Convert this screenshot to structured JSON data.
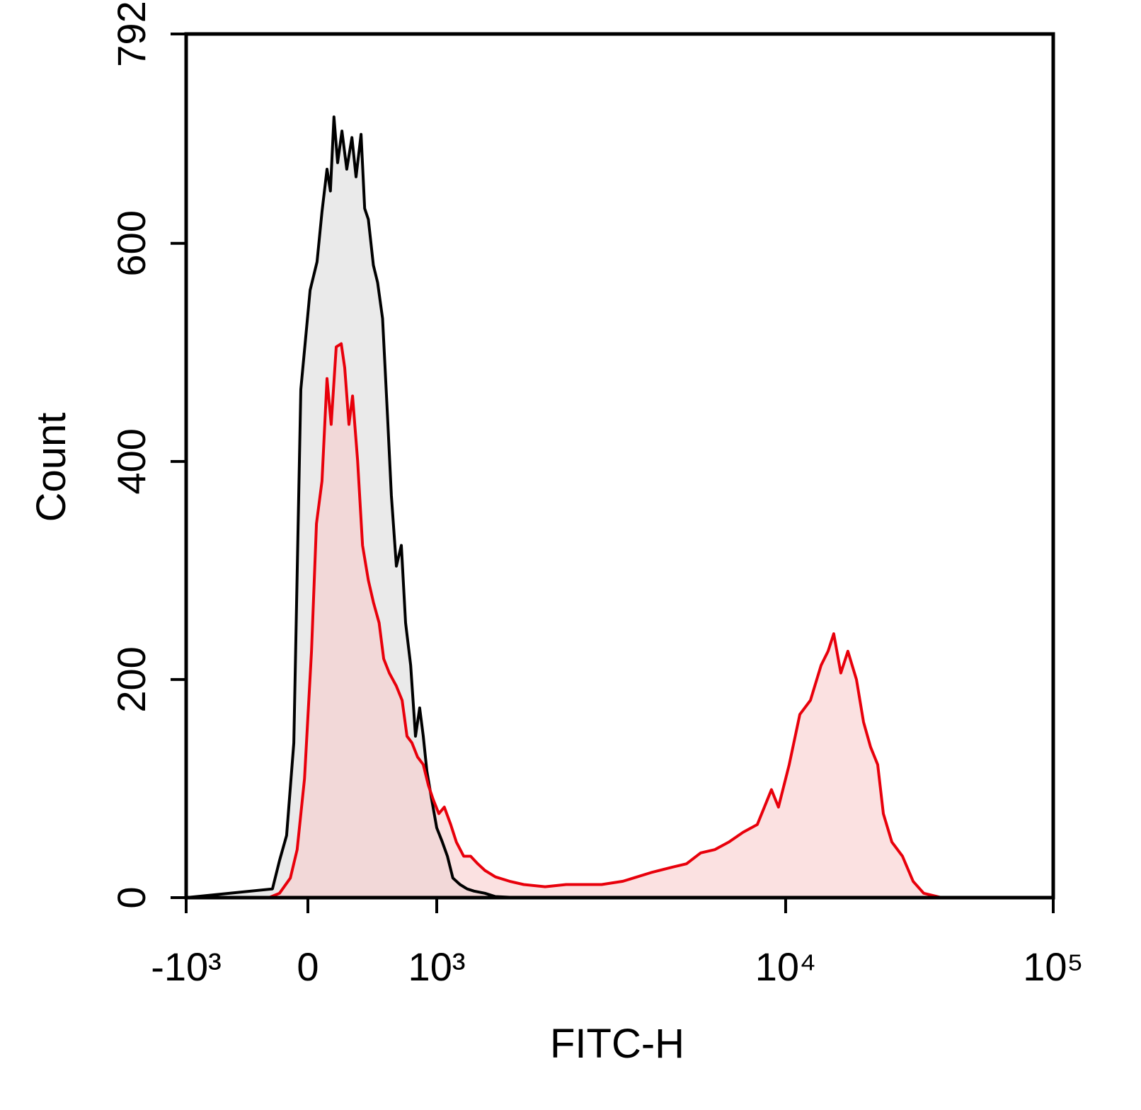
{
  "chart_data": {
    "type": "histogram-overlay",
    "xlabel": "FITC-H",
    "ylabel": "Count",
    "xscale": "biexponential",
    "xlim": [
      -1000,
      100000
    ],
    "xticks": [
      {
        "value": -1000,
        "label": "-10³"
      },
      0,
      {
        "value": 1000,
        "label": "10³"
      },
      {
        "value": 10000,
        "label": "10⁴"
      },
      {
        "value": 100000,
        "label": "10⁵"
      }
    ],
    "ylim": [
      0,
      792
    ],
    "yticks": [
      0,
      200,
      400,
      600,
      792
    ],
    "series": [
      {
        "color": "#000000",
        "fill": "#d9d9d9",
        "x": [
          -1000,
          -145,
          -113,
          -83,
          -54,
          -27,
          8,
          33,
          51,
          70,
          83,
          97,
          112,
          130,
          151,
          175,
          195,
          221,
          241,
          262,
          293,
          321,
          356,
          394,
          425,
          469,
          516,
          560,
          617,
          675,
          730,
          780,
          834,
          912,
          1000,
          1038,
          1074,
          1114,
          1168,
          1225,
          1283,
          1378,
          1478,
          1702,
          1958,
          100000
        ],
        "values": [
          0,
          8,
          34,
          57,
          142,
          466,
          557,
          583,
          629,
          668,
          648,
          716,
          674,
          703,
          668,
          697,
          661,
          700,
          632,
          622,
          580,
          564,
          531,
          440,
          369,
          304,
          323,
          252,
          213,
          148,
          174,
          148,
          116,
          90,
          64,
          51,
          38,
          18,
          12,
          8,
          6,
          4,
          1,
          0,
          0,
          0
        ]
      },
      {
        "color": "#e8000b",
        "fill": "#f7c9c9",
        "x": [
          -1000,
          -162,
          -113,
          -68,
          -41,
          -13,
          13,
          31,
          51,
          70,
          86,
          106,
          127,
          142,
          161,
          178,
          203,
          229,
          262,
          293,
          331,
          364,
          408,
          469,
          524,
          575,
          632,
          702,
          780,
          857,
          937,
          1014,
          1052,
          1098,
          1140,
          1197,
          1254,
          1315,
          1378,
          1478,
          1624,
          1783,
          2053,
          2360,
          2981,
          3428,
          4128,
          4748,
          5211,
          5719,
          6276,
          6890,
          7561,
          8299,
          9109,
          9540,
          10310,
          11300,
          12380,
          13560,
          14410,
          15130,
          16080,
          17090,
          18390,
          19550,
          20780,
          22080,
          23180,
          24940,
          27330,
          29940,
          32810,
          38210,
          100000
        ],
        "values": [
          0,
          0,
          4,
          18,
          44,
          109,
          226,
          343,
          382,
          476,
          434,
          505,
          508,
          486,
          434,
          460,
          401,
          323,
          291,
          271,
          252,
          219,
          206,
          194,
          181,
          148,
          142,
          129,
          122,
          103,
          90,
          77,
          83,
          67,
          51,
          38,
          38,
          31,
          25,
          19,
          15,
          12,
          10,
          12,
          12,
          15,
          23,
          28,
          31,
          41,
          44,
          51,
          60,
          67,
          99,
          83,
          122,
          168,
          181,
          213,
          226,
          242,
          206,
          226,
          200,
          161,
          138,
          122,
          77,
          51,
          38,
          15,
          4,
          0,
          0
        ]
      }
    ]
  }
}
